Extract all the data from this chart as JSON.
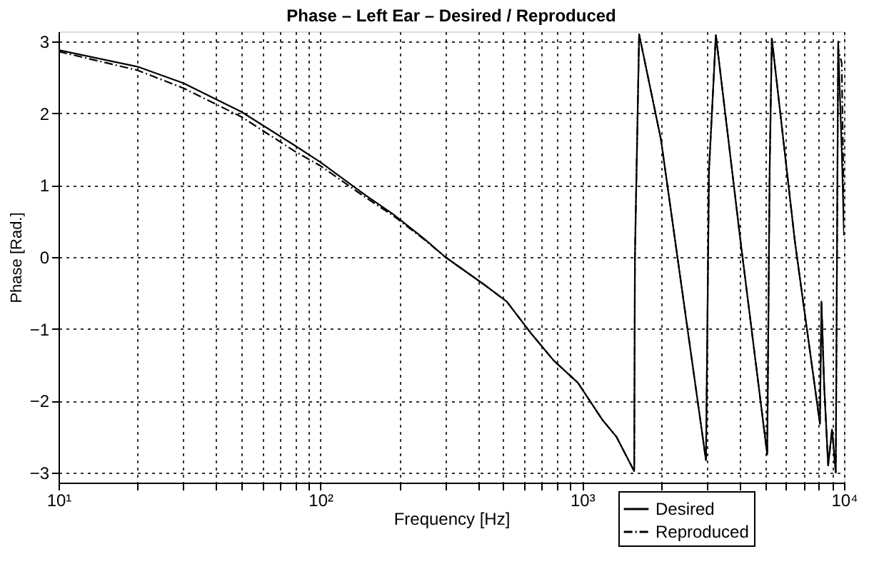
{
  "chart_data": {
    "type": "line",
    "title": "Phase  –  Left Ear – Desired / Reproduced",
    "xlabel": "Frequency [Hz]",
    "ylabel": "Phase [Rad.]",
    "log": "x",
    "xlim": [
      10,
      10000
    ],
    "ylim": [
      -3.14,
      3.14
    ],
    "xticks": [
      {
        "value": 10,
        "label": "10¹"
      },
      {
        "value": 20,
        "label": null
      },
      {
        "value": 30,
        "label": null
      },
      {
        "value": 40,
        "label": null
      },
      {
        "value": 50,
        "label": null
      },
      {
        "value": 60,
        "label": null
      },
      {
        "value": 70,
        "label": null
      },
      {
        "value": 80,
        "label": null
      },
      {
        "value": 90,
        "label": null
      },
      {
        "value": 100,
        "label": "10²"
      },
      {
        "value": 200,
        "label": null
      },
      {
        "value": 300,
        "label": null
      },
      {
        "value": 400,
        "label": null
      },
      {
        "value": 500,
        "label": null
      },
      {
        "value": 600,
        "label": null
      },
      {
        "value": 700,
        "label": null
      },
      {
        "value": 800,
        "label": null
      },
      {
        "value": 900,
        "label": null
      },
      {
        "value": 1000,
        "label": "10³"
      },
      {
        "value": 2000,
        "label": null
      },
      {
        "value": 3000,
        "label": null
      },
      {
        "value": 4000,
        "label": null
      },
      {
        "value": 5000,
        "label": null
      },
      {
        "value": 6000,
        "label": null
      },
      {
        "value": 7000,
        "label": null
      },
      {
        "value": 8000,
        "label": null
      },
      {
        "value": 9000,
        "label": null
      },
      {
        "value": 10000,
        "label": "10⁴"
      }
    ],
    "yticks": [
      -3,
      -2,
      -1,
      0,
      1,
      2,
      3
    ],
    "grid": true,
    "legend": "bottom right",
    "series": [
      {
        "name": "Desired",
        "color": "#000000",
        "line_style": "solid",
        "x": [
          10,
          20,
          30,
          50,
          80,
          100,
          150,
          189,
          250,
          300,
          417,
          515,
          637,
          778,
          963,
          1191,
          1350,
          1580,
          1590,
          1650,
          1998,
          2970,
          3050,
          3240,
          4000,
          5090,
          5200,
          5300,
          6500,
          8090,
          8200,
          8400,
          8700,
          9000,
          9300,
          9500,
          9800,
          10000
        ],
        "values": [
          2.88,
          2.65,
          2.42,
          2.02,
          1.55,
          1.32,
          0.85,
          0.6,
          0.25,
          0.0,
          -0.37,
          -0.62,
          -1.06,
          -1.44,
          -1.75,
          -2.26,
          -2.5,
          -2.98,
          0.0,
          3.1,
          1.64,
          -2.83,
          1.2,
          3.09,
          0.3,
          -2.75,
          1.2,
          3.04,
          0.2,
          -2.32,
          -0.62,
          -1.8,
          -2.9,
          -2.4,
          -3.0,
          3.0,
          1.5,
          0.3
        ]
      },
      {
        "name": "Reproduced",
        "color": "#000000",
        "line_style": "dashdot",
        "x": [
          10,
          20,
          30,
          50,
          80,
          100,
          150,
          189,
          250,
          300,
          417,
          515,
          637,
          778,
          963,
          1191,
          1350,
          1580,
          1590,
          1650,
          1998,
          2970,
          3050,
          3240,
          4000,
          5090,
          5200,
          5300,
          6500,
          8090,
          8200,
          8400,
          8700,
          9000,
          9300,
          9500,
          9800,
          10000
        ],
        "values": [
          2.86,
          2.6,
          2.35,
          1.95,
          1.47,
          1.27,
          0.82,
          0.58,
          0.24,
          0.0,
          -0.37,
          -0.62,
          -1.06,
          -1.44,
          -1.75,
          -2.26,
          -2.5,
          -2.98,
          0.0,
          3.1,
          1.64,
          -2.83,
          1.2,
          3.09,
          0.3,
          -2.75,
          1.2,
          3.04,
          0.2,
          -2.32,
          -0.62,
          -1.8,
          -2.9,
          -2.4,
          -3.0,
          2.9,
          2.7,
          0.5
        ]
      }
    ]
  }
}
